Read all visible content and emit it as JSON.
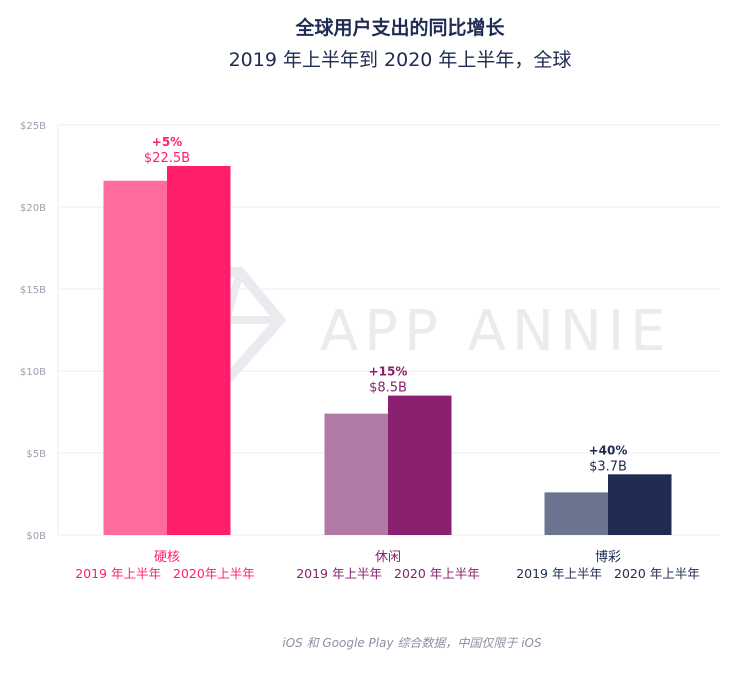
{
  "chart_data": {
    "type": "bar",
    "title": "全球用户支出的同比增长",
    "subtitle": "2019 年上半年到 2020 年上半年，全球",
    "categories": [
      "硬核",
      "休闲",
      "博彩"
    ],
    "series_labels": [
      [
        "2019 年上半年",
        "2020年上半年"
      ],
      [
        "2019 年上半年",
        "2020 年上半年"
      ],
      [
        "2019 年上半年",
        "2020 年上半年"
      ]
    ],
    "values": [
      [
        21.6,
        22.5
      ],
      [
        7.4,
        8.5
      ],
      [
        2.6,
        3.7
      ]
    ],
    "growth_labels": [
      "+5%",
      "+15%",
      "+40%"
    ],
    "value_labels": [
      "$22.5B",
      "$8.5B",
      "$3.7B"
    ],
    "colors": [
      [
        "#ff6b9b",
        "#ff1f6d"
      ],
      [
        "#b07aa5",
        "#8a2070"
      ],
      [
        "#6b7590",
        "#1f2b52"
      ]
    ],
    "label_colors": [
      "#ff1f6d",
      "#8a2070",
      "#1f2b52"
    ],
    "ylim": [
      0,
      25
    ],
    "yticks": [
      "$0B",
      "$5B",
      "$10B",
      "$15B",
      "$20B",
      "$25B"
    ],
    "grid": true,
    "footnote": "iOS 和 Google Play 综合数据，中国仅限于 iOS",
    "watermark": "APP ANNIE"
  }
}
